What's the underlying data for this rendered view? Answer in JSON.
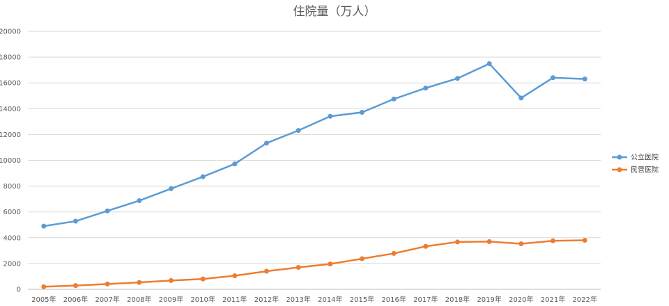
{
  "chart_data": {
    "type": "line",
    "title": "住院量（万人）",
    "xlabel": "",
    "ylabel": "",
    "categories": [
      "2005年",
      "2006年",
      "2007年",
      "2008年",
      "2009年",
      "2010年",
      "2011年",
      "2012年",
      "2013年",
      "2014年",
      "2015年",
      "2016年",
      "2017年",
      "2018年",
      "2019年",
      "2020年",
      "2021年",
      "2022年"
    ],
    "ylim": [
      0,
      20000
    ],
    "yticks": [
      "0",
      "2000",
      "4000",
      "6000",
      "8000",
      "10000",
      "12000",
      "14000",
      "16000",
      "18000",
      "20000"
    ],
    "grid": true,
    "legend_position": "right",
    "series": [
      {
        "name": "公立医院",
        "color": "#5b9bd5",
        "values": [
          4900,
          5280,
          6080,
          6870,
          7800,
          8730,
          9720,
          11330,
          12310,
          13410,
          13720,
          14750,
          15600,
          16350,
          17490,
          14830,
          16400,
          16300
        ]
      },
      {
        "name": "民营医院",
        "color": "#ed7d31",
        "values": [
          200,
          290,
          410,
          530,
          680,
          800,
          1050,
          1400,
          1700,
          1960,
          2370,
          2780,
          3330,
          3670,
          3700,
          3530,
          3760,
          3800
        ]
      }
    ]
  }
}
